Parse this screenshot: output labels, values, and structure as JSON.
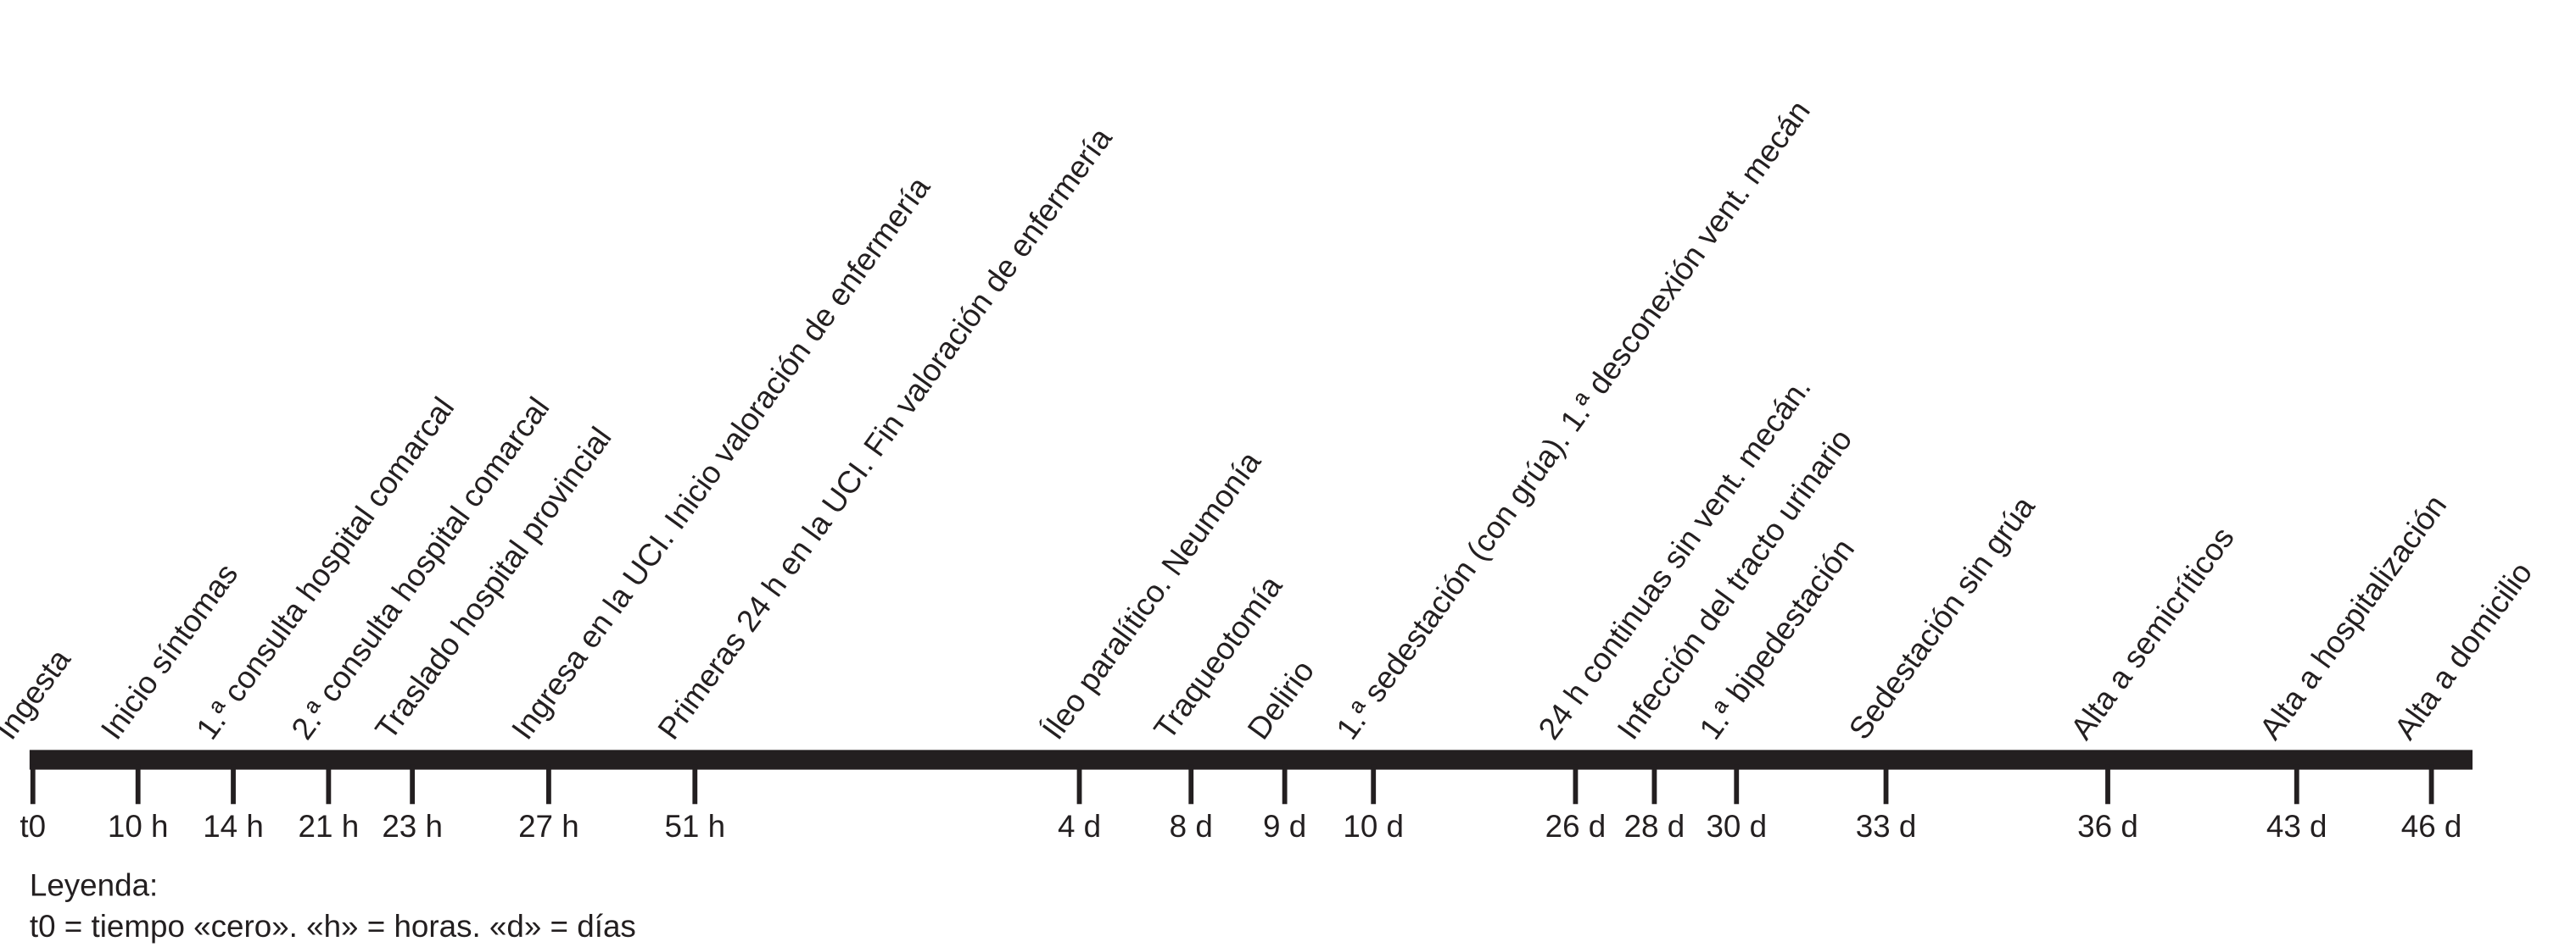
{
  "events": [
    {
      "label": "Ingesta",
      "time": "t0"
    },
    {
      "label": "Inicio síntomas",
      "time": "10 h"
    },
    {
      "label": "1.ª consulta hospital comarcal",
      "time": "14 h"
    },
    {
      "label": "2.ª consulta hospital comarcal",
      "time": "21 h"
    },
    {
      "label": "Traslado hospital provincial",
      "time": "23 h"
    },
    {
      "label": "Ingresa en la UCI. Inicio valoración de enfermería",
      "time": "27 h"
    },
    {
      "label": "Primeras 24 h en la UCI. Fin valoración de enfermería",
      "time": "51 h"
    },
    {
      "label": "Íleo paralítico. Neumonía",
      "time": "4 d"
    },
    {
      "label": "Traqueotomía",
      "time": "8 d"
    },
    {
      "label": "Delirio",
      "time": "9 d"
    },
    {
      "label": "1.ª sedestación (con grúa). 1.ª desconexión vent. mecán",
      "time": "10 d"
    },
    {
      "label": "24 h continuas sin vent. mecán.",
      "time": "26 d"
    },
    {
      "label": "Infección del tracto urinario",
      "time": "28 d"
    },
    {
      "label": "1.ª bipedestación",
      "time": "30 d"
    },
    {
      "label": "Sedestación sin grúa",
      "time": "33 d"
    },
    {
      "label": "Alta a semicríticos",
      "time": "36 d"
    },
    {
      "label": "Alta a hospitalización",
      "time": "43 d"
    },
    {
      "label": "Alta a domicilio",
      "time": "46 d"
    }
  ],
  "legend": {
    "title": "Leyenda:",
    "text": "t0 = tiempo «cero». «h» = horas. «d» = días"
  }
}
